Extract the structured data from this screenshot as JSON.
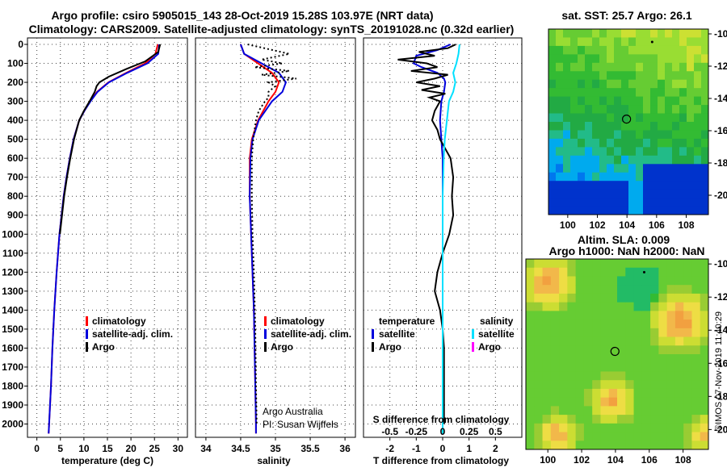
{
  "titles": {
    "line1": "Argo profile: csiro 5905015_143 28-Oct-2019 15.28S 103.97E (NRT data)",
    "line2": "Climatology: CARS2009. Satellite-adjusted climatology: synTS_20191028.nc (0.32d earlier)"
  },
  "colors": {
    "climatology": "#ff0000",
    "satellite": "#0000dd",
    "argo": "#000000",
    "satellite_salinity": "#00e0ff",
    "argo_salinity_diff": "#ff00ff"
  },
  "depth_ticks": [
    "0",
    "100",
    "200",
    "300",
    "400",
    "500",
    "600",
    "700",
    "800",
    "900",
    "1000",
    "1100",
    "1200",
    "1300",
    "1400",
    "1500",
    "1600",
    "1700",
    "1800",
    "1900",
    "2000"
  ],
  "panels": {
    "temperature": {
      "xlabel": "temperature (deg C)",
      "xticks": [
        "0",
        "5",
        "10",
        "15",
        "20",
        "25",
        "30"
      ]
    },
    "salinity": {
      "xlabel": "salinity",
      "xticks": [
        "34",
        "34.5",
        "35",
        "35.5",
        "36"
      ],
      "note1": "Argo Australia",
      "note2": "PI: Susan Wijffels"
    },
    "difference": {
      "xlabel": "T difference from climatology",
      "xticks": [
        "-2",
        "-1",
        "0",
        "1",
        "2"
      ],
      "top_label": "S difference from climatology",
      "top_ticks": [
        "-0.5",
        "-0.25",
        "0",
        "0.25",
        "0.5"
      ]
    }
  },
  "legends": {
    "climatology": "climatology",
    "satellite_adj": "satellite-adj. clim.",
    "argo": "Argo",
    "temperature": "temperature",
    "salinity": "salinity",
    "satellite": "satellite"
  },
  "maps": {
    "sst_title": "sat. SST: 25.7 Argo: 26.1",
    "sla_title1": "Altim. SLA: 0.009",
    "sla_title2": "Argo h1000: NaN h2000: NaN",
    "lon_ticks": [
      "100",
      "102",
      "104",
      "106",
      "108"
    ],
    "lat_ticks": [
      "-10",
      "-12",
      "-14",
      "-16",
      "-18",
      "-20"
    ],
    "profile_location": {
      "lon": 103.97,
      "lat": -15.28
    }
  },
  "side_text": "©IMOS 07-Nov-2019 11:40:29",
  "chart_data": [
    {
      "type": "line",
      "title": "",
      "xlabel": "temperature (deg C)",
      "ylabel": "",
      "xlim": [
        -2,
        32
      ],
      "ylim": [
        2070,
        0
      ],
      "series": [
        {
          "name": "climatology",
          "depth": [
            0,
            50,
            100,
            150,
            200,
            250,
            300,
            350,
            400,
            500,
            600,
            700,
            800,
            1000,
            1200,
            1400,
            1600,
            1800,
            2000,
            2050
          ],
          "values": [
            25.7,
            25.2,
            23.0,
            19.0,
            15.2,
            12.8,
            11.3,
            10.1,
            9.0,
            7.8,
            7.0,
            6.3,
            5.7,
            4.8,
            4.2,
            3.7,
            3.3,
            3.0,
            2.6,
            2.5
          ]
        },
        {
          "name": "satellite-adj. clim.",
          "depth": [
            0,
            50,
            100,
            150,
            200,
            250,
            300,
            350,
            400,
            500,
            600,
            700,
            800,
            1000,
            1200,
            1400,
            1600,
            1800,
            2000,
            2050
          ],
          "values": [
            26.0,
            25.8,
            23.5,
            19.2,
            15.3,
            12.9,
            11.4,
            10.1,
            9.0,
            7.8,
            7.0,
            6.3,
            5.7,
            4.8,
            4.2,
            3.7,
            3.3,
            3.0,
            2.6,
            2.5
          ]
        },
        {
          "name": "Argo",
          "depth": [
            0,
            40,
            90,
            130,
            170,
            200,
            220,
            250,
            300,
            350,
            400,
            500,
            600,
            700,
            800,
            1000
          ],
          "values": [
            26.2,
            25.8,
            23.0,
            19.0,
            15.3,
            13.3,
            12.7,
            12.3,
            11.2,
            10.0,
            9.0,
            7.9,
            7.1,
            6.4,
            5.8,
            4.9
          ]
        }
      ]
    },
    {
      "type": "line",
      "title": "",
      "xlabel": "salinity",
      "ylabel": "",
      "xlim": [
        33.85,
        36.15
      ],
      "ylim": [
        2070,
        0
      ],
      "series": [
        {
          "name": "climatology",
          "depth": [
            0,
            50,
            100,
            150,
            200,
            250,
            300,
            400,
            500,
            600,
            800,
            1000,
            1200,
            1400,
            1600,
            1800,
            2000,
            2050
          ],
          "values": [
            34.5,
            34.55,
            34.75,
            34.95,
            35.05,
            35.0,
            34.9,
            34.75,
            34.66,
            34.63,
            34.63,
            34.65,
            34.67,
            34.69,
            34.7,
            34.71,
            34.72,
            34.72
          ]
        },
        {
          "name": "satellite-adj. clim.",
          "depth": [
            0,
            50,
            100,
            150,
            200,
            250,
            300,
            400,
            500,
            600,
            800,
            1000,
            1200,
            1400,
            1600,
            1800,
            2000,
            2050
          ],
          "values": [
            34.5,
            34.55,
            34.8,
            35.05,
            35.15,
            35.1,
            34.95,
            34.76,
            34.67,
            34.64,
            34.63,
            34.65,
            34.67,
            34.69,
            34.7,
            34.71,
            34.72,
            34.72
          ]
        },
        {
          "name": "Argo",
          "depth": [
            0,
            50,
            80,
            100,
            120,
            140,
            160,
            180,
            200,
            220,
            250,
            280,
            300,
            350,
            400,
            500,
            600,
            800,
            1000,
            1200,
            1500,
            1800,
            2000
          ],
          "values": [
            34.6,
            35.2,
            34.8,
            35.1,
            34.7,
            35.2,
            34.8,
            35.3,
            34.9,
            35.0,
            34.9,
            34.9,
            34.85,
            34.76,
            34.72,
            34.68,
            34.66,
            34.66,
            34.67,
            34.69,
            34.71,
            34.72,
            34.73
          ]
        }
      ]
    },
    {
      "type": "line",
      "title": "",
      "xlabel": "T difference from climatology",
      "ylabel": "",
      "xlim": [
        -3,
        3
      ],
      "ylim": [
        2070,
        0
      ],
      "series": [
        {
          "name": "temperature satellite",
          "depth": [
            0,
            30,
            60,
            100,
            120,
            150,
            180,
            200,
            250,
            300,
            400,
            500,
            600,
            1000,
            1500,
            2000,
            2050
          ],
          "values": [
            0.3,
            -0.2,
            -1.0,
            -1.1,
            -0.8,
            -0.2,
            0.05,
            0.1,
            0.05,
            -0.05,
            -0.1,
            -0.05,
            0.0,
            0.0,
            0.0,
            0.0,
            0.0
          ]
        },
        {
          "name": "temperature Argo",
          "depth": [
            0,
            20,
            40,
            60,
            80,
            100,
            120,
            140,
            160,
            180,
            200,
            220,
            240,
            260,
            280,
            300,
            350,
            400,
            450,
            500,
            600,
            700,
            800,
            900,
            1000,
            1100,
            1200,
            1300,
            1400,
            1500,
            1600,
            1800,
            2000
          ],
          "values": [
            0.5,
            0.2,
            -0.9,
            -0.3,
            -1.7,
            -0.6,
            -0.2,
            -1.2,
            0.2,
            -0.3,
            -1.0,
            -0.1,
            -0.8,
            0.1,
            -0.5,
            -0.1,
            -0.3,
            -0.4,
            -0.2,
            -0.1,
            0.3,
            0.4,
            0.35,
            0.4,
            0.25,
            0.0,
            -0.2,
            -0.3,
            -0.1,
            0.0,
            0.05,
            0.05,
            0.05
          ]
        },
        {
          "name": "salinity satellite",
          "depth": [
            0,
            50,
            100,
            150,
            200,
            250,
            300,
            400,
            500,
            600,
            800,
            1000,
            1500,
            2000,
            2050
          ],
          "values": [
            0.16,
            0.15,
            0.13,
            0.1,
            0.12,
            0.1,
            0.06,
            0.04,
            0.02,
            0.01,
            0.0,
            0.0,
            0.0,
            0.0,
            0.0
          ]
        }
      ]
    }
  ]
}
